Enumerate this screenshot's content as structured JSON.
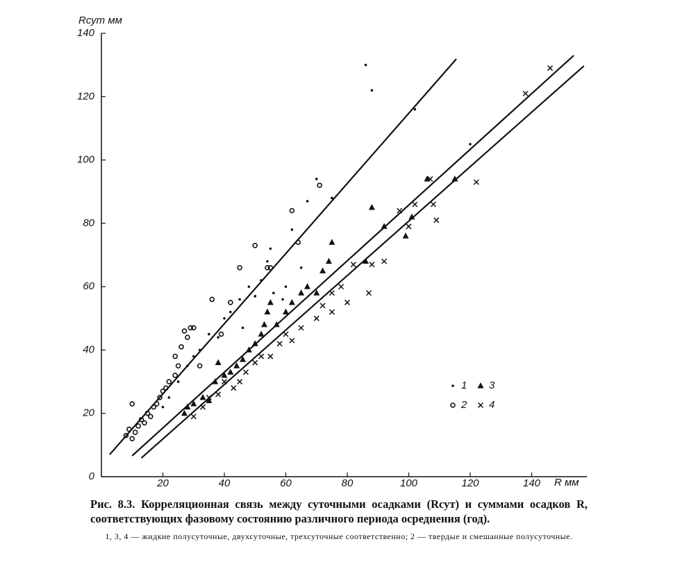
{
  "chart_data": {
    "type": "scatter",
    "title": "Рис. 8.3. Корреляционная связь между суточными осадками (Rсут) и суммами осадков R, соответствующих фазовому состоянию различного периода осреднения (год).",
    "subtitle": "1, 3, 4 — жидкие полусуточные, двухсуточные, трехсуточные соответственно; 2 — твердые и смешанные полусуточные.",
    "y_label": "Rсут мм",
    "x_label": "R мм",
    "xlim": [
      0,
      158
    ],
    "ylim": [
      0,
      140
    ],
    "xticks": [
      20,
      40,
      60,
      80,
      100,
      120,
      140
    ],
    "yticks": [
      0,
      20,
      40,
      60,
      80,
      100,
      120,
      140
    ],
    "grid": false,
    "series": [
      {
        "name": "1",
        "marker": "dot",
        "color": "#111111",
        "x": [
          20,
          22,
          25,
          28,
          30,
          32,
          35,
          38,
          40,
          42,
          45,
          48,
          50,
          52,
          54,
          56,
          60,
          62,
          65,
          67,
          70,
          75,
          86,
          88,
          102,
          120,
          59,
          46,
          55
        ],
        "y": [
          22,
          25,
          30,
          35,
          38,
          40,
          45,
          44,
          50,
          52,
          56,
          60,
          57,
          62,
          68,
          58,
          60,
          78,
          66,
          87,
          94,
          88,
          130,
          122,
          116,
          105,
          56,
          47,
          72
        ]
      },
      {
        "name": "2",
        "marker": "circle",
        "color": "#111111",
        "x": [
          8,
          9,
          10,
          11,
          12,
          13,
          14,
          15,
          16,
          17,
          18,
          19,
          20,
          21,
          22,
          24,
          25,
          26,
          27,
          28,
          29,
          30,
          32,
          36,
          39,
          42,
          45,
          50,
          54,
          55,
          62,
          64,
          71,
          10,
          24
        ],
        "y": [
          13,
          15,
          12,
          14,
          16,
          18,
          17,
          20,
          19,
          22,
          23,
          25,
          27,
          28,
          30,
          38,
          35,
          41,
          46,
          44,
          47,
          47,
          35,
          56,
          45,
          55,
          66,
          73,
          66,
          66,
          84,
          74,
          92,
          23,
          32
        ]
      },
      {
        "name": "3",
        "marker": "triangle",
        "color": "#111111",
        "x": [
          27,
          28,
          30,
          33,
          35,
          37,
          38,
          40,
          42,
          44,
          46,
          48,
          50,
          52,
          53,
          54,
          55,
          57,
          60,
          62,
          65,
          67,
          70,
          72,
          74,
          75,
          88,
          92,
          99,
          101,
          106,
          115,
          86
        ],
        "y": [
          20,
          22,
          23,
          25,
          24,
          30,
          36,
          32,
          33,
          35,
          37,
          40,
          42,
          45,
          48,
          52,
          55,
          48,
          52,
          55,
          58,
          60,
          58,
          65,
          68,
          74,
          85,
          79,
          76,
          82,
          94,
          94,
          68
        ]
      },
      {
        "name": "4",
        "marker": "cross",
        "color": "#111111",
        "x": [
          30,
          33,
          35,
          38,
          40,
          43,
          45,
          47,
          50,
          52,
          55,
          58,
          60,
          62,
          65,
          70,
          72,
          75,
          75,
          78,
          80,
          82,
          87,
          88,
          92,
          97,
          100,
          102,
          107,
          108,
          109,
          122,
          138,
          146
        ],
        "y": [
          19,
          22,
          25,
          26,
          30,
          28,
          30,
          33,
          36,
          38,
          38,
          42,
          45,
          43,
          47,
          50,
          54,
          58,
          52,
          60,
          55,
          67,
          58,
          67,
          68,
          84,
          79,
          86,
          94,
          86,
          81,
          93,
          121,
          129
        ]
      }
    ],
    "lines": [
      {
        "x": [
          2.7,
          115.5
        ],
        "y": [
          7,
          131.9
        ]
      },
      {
        "x": [
          10,
          153.7
        ],
        "y": [
          6.6,
          133
        ]
      },
      {
        "x": [
          13,
          157
        ],
        "y": [
          5.9,
          129.7
        ]
      }
    ]
  }
}
